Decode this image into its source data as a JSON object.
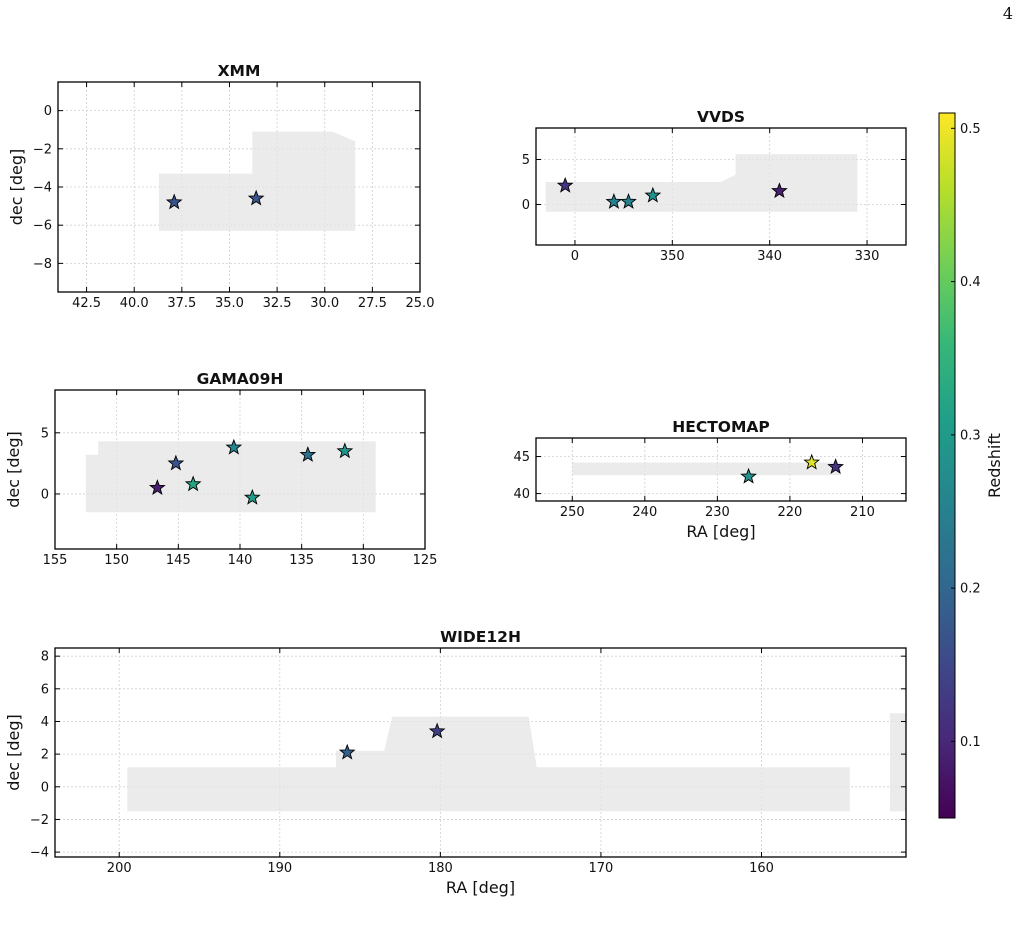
{
  "page_number": "4",
  "chart_data": [
    {
      "type": "scatter",
      "title": "XMM",
      "xlabel": "",
      "ylabel": "dec [deg]",
      "xlim": [
        44,
        25
      ],
      "ylim": [
        -9.5,
        1.5
      ],
      "xticks": [
        "42.5",
        "40.0",
        "37.5",
        "35.0",
        "32.5",
        "30.0",
        "27.5",
        "25.0"
      ],
      "xtick_values": [
        42.5,
        40.0,
        37.5,
        35.0,
        32.5,
        30.0,
        27.5,
        25.0
      ],
      "yticks": [
        "0",
        "−2",
        "−4",
        "−6",
        "−8"
      ],
      "ytick_values": [
        0,
        -2,
        -4,
        -6,
        -8
      ],
      "grid": true,
      "footprint": [
        [
          38.7,
          -6.0
        ],
        [
          38.7,
          -3.3
        ],
        [
          33.8,
          -3.3
        ],
        [
          33.8,
          -1.1
        ],
        [
          29.6,
          -1.1
        ],
        [
          28.4,
          -1.6
        ],
        [
          28.4,
          -6.3
        ],
        [
          38.7,
          -6.3
        ]
      ],
      "points": [
        {
          "x": 37.9,
          "y": -4.8,
          "z": 0.17
        },
        {
          "x": 33.6,
          "y": -4.6,
          "z": 0.17
        }
      ]
    },
    {
      "type": "scatter",
      "title": "VVDS",
      "xlabel": "",
      "ylabel": "",
      "xlim": [
        364,
        326
      ],
      "ylim": [
        -4.5,
        8.5
      ],
      "xticks": [
        "0",
        "350",
        "340",
        "330"
      ],
      "xtick_values": [
        360,
        350,
        340,
        330
      ],
      "yticks": [
        "5",
        "0"
      ],
      "ytick_values": [
        5,
        0
      ],
      "grid": true,
      "footprint": [
        [
          363.0,
          -0.8
        ],
        [
          363.0,
          2.5
        ],
        [
          345.0,
          2.5
        ],
        [
          343.5,
          3.3
        ],
        [
          343.5,
          5.6
        ],
        [
          331.0,
          5.6
        ],
        [
          331.0,
          -0.8
        ]
      ],
      "points": [
        {
          "x": 361.0,
          "y": 2.1,
          "z": 0.12
        },
        {
          "x": 356.0,
          "y": 0.3,
          "z": 0.25
        },
        {
          "x": 354.5,
          "y": 0.3,
          "z": 0.25
        },
        {
          "x": 352.0,
          "y": 1.0,
          "z": 0.28
        },
        {
          "x": 339.0,
          "y": 1.5,
          "z": 0.09
        }
      ]
    },
    {
      "type": "scatter",
      "title": "GAMA09H",
      "xlabel": "",
      "ylabel": "dec [deg]",
      "xlim": [
        155,
        125
      ],
      "ylim": [
        -4.5,
        8.5
      ],
      "xticks": [
        "155",
        "150",
        "145",
        "140",
        "135",
        "130",
        "125"
      ],
      "xtick_values": [
        155,
        150,
        145,
        140,
        135,
        130,
        125
      ],
      "yticks": [
        "5",
        "0"
      ],
      "ytick_values": [
        5,
        0
      ],
      "grid": true,
      "footprint": [
        [
          152.5,
          -1.5
        ],
        [
          152.5,
          3.2
        ],
        [
          151.5,
          3.2
        ],
        [
          151.5,
          4.3
        ],
        [
          129.0,
          4.3
        ],
        [
          129.0,
          -1.5
        ]
      ],
      "points": [
        {
          "x": 146.7,
          "y": 0.5,
          "z": 0.09
        },
        {
          "x": 145.2,
          "y": 2.5,
          "z": 0.17
        },
        {
          "x": 143.8,
          "y": 0.8,
          "z": 0.32
        },
        {
          "x": 140.5,
          "y": 3.8,
          "z": 0.26
        },
        {
          "x": 139.0,
          "y": -0.3,
          "z": 0.3
        },
        {
          "x": 134.5,
          "y": 3.2,
          "z": 0.22
        },
        {
          "x": 131.5,
          "y": 3.5,
          "z": 0.29
        }
      ]
    },
    {
      "type": "scatter",
      "title": "HECTOMAP",
      "xlabel": "RA [deg]",
      "ylabel": "",
      "xlim": [
        255,
        204
      ],
      "ylim": [
        39,
        47.5
      ],
      "xticks": [
        "250",
        "240",
        "230",
        "220",
        "210"
      ],
      "xtick_values": [
        250,
        240,
        230,
        220,
        210
      ],
      "yticks": [
        "45",
        "40"
      ],
      "ytick_values": [
        45,
        40
      ],
      "grid": true,
      "footprint": [
        [
          250.0,
          42.5
        ],
        [
          250.0,
          44.2
        ],
        [
          213.0,
          44.2
        ],
        [
          213.0,
          42.5
        ]
      ],
      "points": [
        {
          "x": 225.7,
          "y": 42.3,
          "z": 0.28
        },
        {
          "x": 217.0,
          "y": 44.2,
          "z": 0.49
        },
        {
          "x": 213.7,
          "y": 43.6,
          "z": 0.12
        }
      ]
    },
    {
      "type": "scatter",
      "title": "WIDE12H",
      "xlabel": "RA [deg]",
      "ylabel": "dec [deg]",
      "xlim": [
        204,
        151
      ],
      "ylim": [
        -4.3,
        8.5
      ],
      "xticks": [
        "200",
        "190",
        "180",
        "170",
        "160"
      ],
      "xtick_values": [
        200,
        190,
        180,
        170,
        160
      ],
      "yticks": [
        "8",
        "6",
        "4",
        "2",
        "0",
        "−2",
        "−4"
      ],
      "ytick_values": [
        8,
        6,
        4,
        2,
        0,
        -2,
        -4
      ],
      "grid": true,
      "footprint": [
        [
          199.5,
          -1.5
        ],
        [
          199.5,
          1.2
        ],
        [
          186.5,
          1.2
        ],
        [
          186.5,
          2.2
        ],
        [
          183.5,
          2.2
        ],
        [
          183.0,
          4.3
        ],
        [
          174.5,
          4.3
        ],
        [
          174.0,
          1.2
        ],
        [
          154.5,
          1.2
        ],
        [
          154.5,
          -1.5
        ]
      ],
      "footprint_extra": [
        [
          152.0,
          -1.5
        ],
        [
          152.0,
          4.5
        ],
        [
          151.0,
          4.5
        ],
        [
          151.0,
          -1.5
        ]
      ],
      "points": [
        {
          "x": 185.8,
          "y": 2.1,
          "z": 0.19
        },
        {
          "x": 180.2,
          "y": 3.4,
          "z": 0.14
        }
      ]
    }
  ],
  "colorbar": {
    "label": "Redshift",
    "min": 0.05,
    "max": 0.51,
    "ticks": [
      "0.1",
      "0.2",
      "0.3",
      "0.4",
      "0.5"
    ],
    "tick_values": [
      0.1,
      0.2,
      0.3,
      0.4,
      0.5
    ],
    "colormap": "viridis"
  }
}
